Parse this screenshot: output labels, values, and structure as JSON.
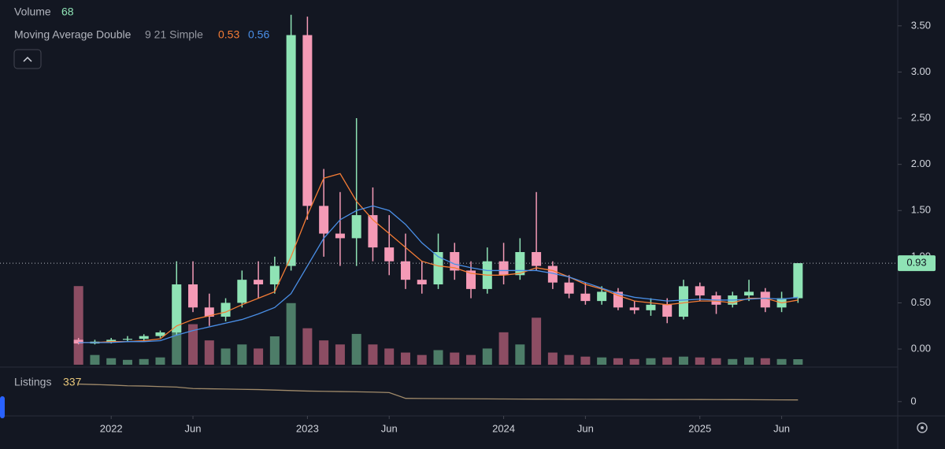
{
  "chart_data": {
    "type": "candlestick",
    "x": [
      "2021-11",
      "2021-12",
      "2022-01",
      "2022-02",
      "2022-03",
      "2022-04",
      "2022-05",
      "2022-06",
      "2022-07",
      "2022-08",
      "2022-09",
      "2022-10",
      "2022-11",
      "2022-12",
      "2023-01",
      "2023-02",
      "2023-03",
      "2023-04",
      "2023-05",
      "2023-06",
      "2023-07",
      "2023-08",
      "2023-09",
      "2023-10",
      "2023-11",
      "2023-12",
      "2024-01",
      "2024-02",
      "2024-03",
      "2024-04",
      "2024-05",
      "2024-06",
      "2024-07",
      "2024-08",
      "2024-09",
      "2024-10",
      "2024-11",
      "2024-12",
      "2025-01",
      "2025-02",
      "2025-03",
      "2025-04",
      "2025-05",
      "2025-06",
      "2025-07"
    ],
    "open": [
      0.1,
      0.06,
      0.08,
      0.1,
      0.11,
      0.14,
      0.18,
      0.7,
      0.45,
      0.35,
      0.5,
      0.75,
      0.7,
      0.9,
      3.4,
      1.55,
      1.25,
      1.2,
      1.45,
      1.1,
      0.95,
      0.75,
      0.7,
      1.05,
      0.85,
      0.65,
      0.95,
      0.8,
      1.05,
      0.9,
      0.72,
      0.6,
      0.52,
      0.62,
      0.45,
      0.42,
      0.48,
      0.35,
      0.68,
      0.58,
      0.48,
      0.58,
      0.62,
      0.45,
      0.55
    ],
    "high": [
      0.12,
      0.1,
      0.12,
      0.14,
      0.16,
      0.2,
      0.95,
      0.95,
      0.6,
      0.55,
      0.85,
      0.95,
      1.0,
      3.62,
      3.6,
      1.95,
      1.7,
      2.5,
      1.75,
      1.45,
      1.25,
      0.95,
      1.25,
      1.15,
      0.95,
      1.1,
      1.15,
      1.2,
      1.7,
      0.95,
      0.8,
      0.72,
      0.68,
      0.66,
      0.52,
      0.55,
      0.55,
      0.75,
      0.72,
      0.62,
      0.62,
      0.75,
      0.66,
      0.62,
      0.93
    ],
    "low": [
      0.05,
      0.05,
      0.06,
      0.08,
      0.09,
      0.12,
      0.15,
      0.4,
      0.25,
      0.3,
      0.45,
      0.55,
      0.6,
      0.85,
      1.4,
      1.0,
      0.9,
      0.9,
      0.95,
      0.8,
      0.65,
      0.6,
      0.65,
      0.75,
      0.55,
      0.6,
      0.7,
      0.75,
      0.85,
      0.65,
      0.55,
      0.48,
      0.48,
      0.42,
      0.38,
      0.36,
      0.28,
      0.32,
      0.52,
      0.38,
      0.45,
      0.52,
      0.4,
      0.4,
      0.5
    ],
    "close": [
      0.06,
      0.08,
      0.1,
      0.11,
      0.14,
      0.18,
      0.7,
      0.45,
      0.35,
      0.5,
      0.75,
      0.7,
      0.9,
      3.4,
      1.55,
      1.25,
      1.2,
      1.45,
      1.1,
      0.95,
      0.75,
      0.7,
      1.05,
      0.85,
      0.65,
      0.95,
      0.8,
      1.05,
      0.9,
      0.72,
      0.6,
      0.52,
      0.62,
      0.45,
      0.42,
      0.48,
      0.35,
      0.68,
      0.58,
      0.48,
      0.58,
      0.62,
      0.45,
      0.55,
      0.93
    ],
    "up_color": "#8fe3b5",
    "down_color": "#f49ab6",
    "ylim": [
      -0.17,
      3.78
    ],
    "yticks": [
      {
        "value": 0,
        "label": "0.00"
      },
      {
        "value": 0.5,
        "label": "0.50"
      },
      {
        "value": 1,
        "label": "1.00"
      },
      {
        "value": 1.5,
        "label": "1.50"
      },
      {
        "value": 2,
        "label": "2.00"
      },
      {
        "value": 2.5,
        "label": "2.50"
      },
      {
        "value": 3,
        "label": "3.00"
      },
      {
        "value": 3.5,
        "label": "3.50"
      }
    ],
    "xticks": [
      {
        "value": "2022-01",
        "label": "2022"
      },
      {
        "value": "2022-06",
        "label": "Jun"
      },
      {
        "value": "2023-01",
        "label": "2023"
      },
      {
        "value": "2023-06",
        "label": "Jun"
      },
      {
        "value": "2024-01",
        "label": "2024"
      },
      {
        "value": "2024-06",
        "label": "Jun"
      },
      {
        "value": "2025-01",
        "label": "2025"
      },
      {
        "value": "2025-06",
        "label": "Jun"
      }
    ],
    "volume": {
      "name": "Volume",
      "up_color": "#4d7d68",
      "down_color": "#8c4d63",
      "lim": [
        0,
        4500
      ],
      "values": [
        970,
        120,
        80,
        60,
        70,
        90,
        950,
        500,
        300,
        200,
        250,
        200,
        350,
        760,
        450,
        300,
        250,
        380,
        250,
        200,
        150,
        120,
        180,
        150,
        120,
        200,
        400,
        250,
        580,
        150,
        120,
        100,
        90,
        80,
        70,
        80,
        90,
        100,
        90,
        80,
        70,
        90,
        80,
        70,
        68
      ]
    },
    "moving_average": {
      "name": "Moving Average Double",
      "params": "9 21 Simple",
      "series": [
        {
          "color": "#f57c35",
          "values": [
            0.07,
            0.07,
            0.08,
            0.08,
            0.09,
            0.11,
            0.25,
            0.32,
            0.36,
            0.4,
            0.48,
            0.55,
            0.62,
            1.0,
            1.45,
            1.85,
            1.9,
            1.6,
            1.4,
            1.25,
            1.1,
            0.95,
            0.9,
            0.88,
            0.82,
            0.8,
            0.8,
            0.82,
            0.88,
            0.85,
            0.78,
            0.7,
            0.65,
            0.58,
            0.52,
            0.5,
            0.48,
            0.5,
            0.52,
            0.52,
            0.5,
            0.55,
            0.55,
            0.5,
            0.53
          ]
        },
        {
          "color": "#4a8fe7",
          "values": [
            0.07,
            0.07,
            0.07,
            0.08,
            0.08,
            0.09,
            0.15,
            0.2,
            0.24,
            0.28,
            0.32,
            0.38,
            0.45,
            0.6,
            0.9,
            1.2,
            1.4,
            1.5,
            1.55,
            1.5,
            1.35,
            1.15,
            1.0,
            0.92,
            0.88,
            0.85,
            0.85,
            0.85,
            0.85,
            0.82,
            0.78,
            0.72,
            0.66,
            0.6,
            0.56,
            0.54,
            0.52,
            0.53,
            0.54,
            0.53,
            0.53,
            0.54,
            0.55,
            0.54,
            0.56
          ]
        }
      ]
    },
    "listings": {
      "name": "Listings",
      "color": "#a08a6a",
      "ylim": [
        -2700,
        6570
      ],
      "yticks": [
        0
      ],
      "values": [
        3500,
        3400,
        3300,
        3150,
        3100,
        3000,
        2900,
        2600,
        2550,
        2500,
        2450,
        2400,
        2300,
        2200,
        2100,
        2050,
        2000,
        1950,
        1900,
        1800,
        650,
        620,
        600,
        580,
        560,
        540,
        520,
        500,
        490,
        480,
        470,
        460,
        450,
        440,
        430,
        420,
        410,
        420,
        410,
        400,
        390,
        380,
        360,
        345,
        337
      ]
    }
  }
}
